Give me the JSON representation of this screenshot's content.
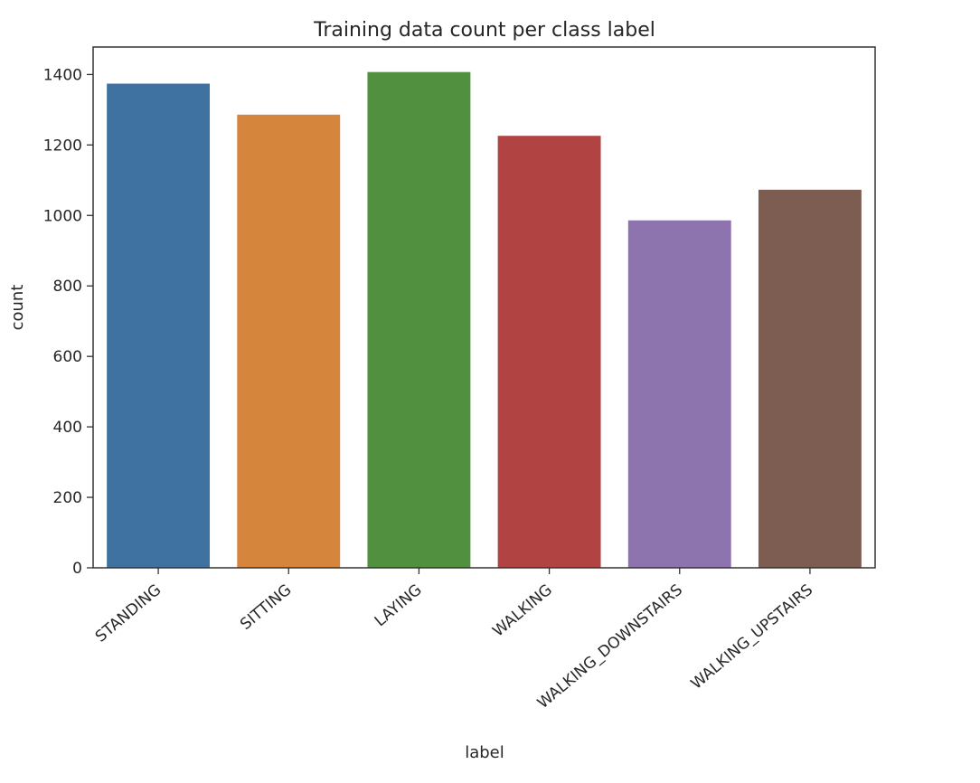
{
  "chart_data": {
    "type": "bar",
    "title": "Training data count per class label",
    "xlabel": "label",
    "ylabel": "count",
    "categories": [
      "STANDING",
      "SITTING",
      "LAYING",
      "WALKING",
      "WALKING_DOWNSTAIRS",
      "WALKING_UPSTAIRS"
    ],
    "values": [
      1374,
      1286,
      1407,
      1226,
      986,
      1073
    ],
    "ylim": [
      0,
      1478
    ],
    "yticks": [
      0,
      200,
      400,
      600,
      800,
      1000,
      1200,
      1400
    ],
    "grid": false,
    "legend": "none",
    "colors": [
      "#3f72a0",
      "#d6853d",
      "#51903f",
      "#b14442",
      "#8e74ae",
      "#7d5c51"
    ]
  }
}
